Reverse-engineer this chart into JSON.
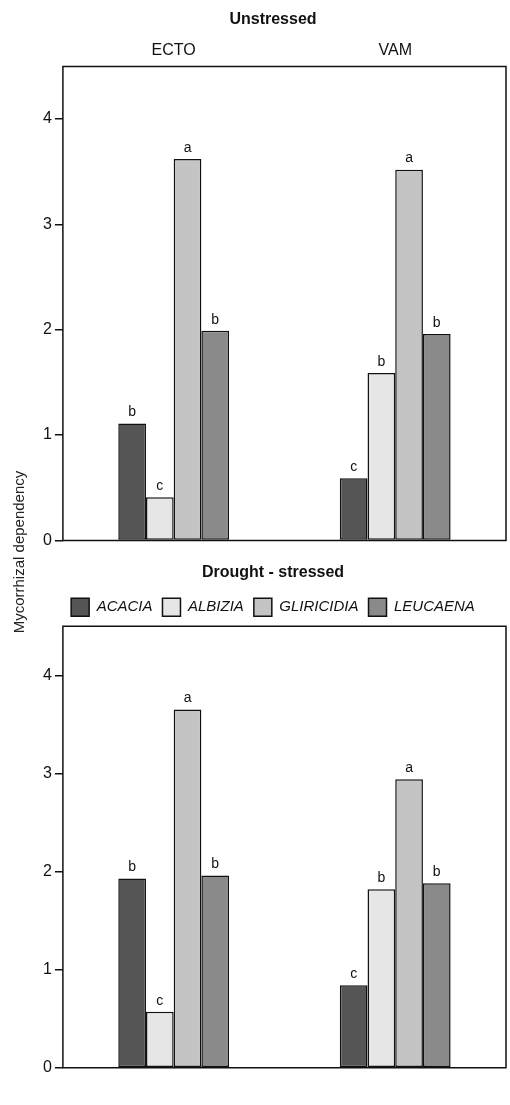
{
  "chart_data": [
    {
      "type": "bar",
      "title": "Unstressed",
      "ylabel": "Mycorrhizal dependency",
      "categories": [
        "ECTO",
        "VAM"
      ],
      "ylim": [
        0,
        4.5
      ],
      "yticks": [
        0,
        1,
        2,
        3,
        4
      ],
      "grid": false,
      "legend": false,
      "series": [
        {
          "color": "#555555",
          "values": [
            1.11,
            0.59
          ],
          "value_labels": [
            "b",
            "c"
          ]
        },
        {
          "color": "#e6e6e6",
          "values": [
            0.41,
            1.59
          ],
          "value_labels": [
            "c",
            "b"
          ]
        },
        {
          "color": "#c4c4c4",
          "values": [
            3.62,
            3.52
          ],
          "value_labels": [
            "a",
            "a"
          ]
        },
        {
          "color": "#8a8a8a",
          "values": [
            1.99,
            1.96
          ],
          "value_labels": [
            "b",
            "b"
          ]
        }
      ]
    },
    {
      "type": "bar",
      "title": "Drought - stressed",
      "categories": [
        null,
        null
      ],
      "ylim": [
        0,
        4.5
      ],
      "yticks": [
        0,
        1,
        2,
        3,
        4
      ],
      "grid": false,
      "legend": "top",
      "series": [
        {
          "name": "ACACIA",
          "color": "#555555",
          "values": [
            1.93,
            0.84
          ],
          "value_labels": [
            "b",
            "c"
          ]
        },
        {
          "name": "ALBIZIA",
          "color": "#e6e6e6",
          "values": [
            0.57,
            1.82
          ],
          "value_labels": [
            "c",
            "b"
          ]
        },
        {
          "name": "GLIRICIDIA",
          "color": "#c4c4c4",
          "values": [
            3.65,
            2.94
          ],
          "value_labels": [
            "a",
            "a"
          ]
        },
        {
          "name": "LEUCAENA",
          "color": "#8a8a8a",
          "values": [
            1.96,
            1.88
          ],
          "value_labels": [
            "b",
            "b"
          ]
        }
      ]
    }
  ]
}
